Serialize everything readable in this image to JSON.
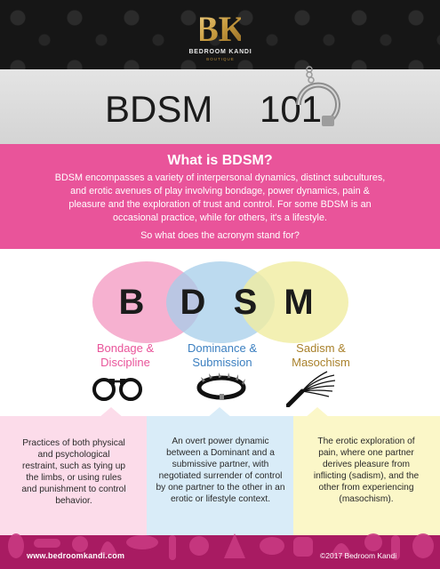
{
  "brand": {
    "monogram": "BK",
    "name": "BEDROOM KANDI",
    "tagline": "BOUTIQUE"
  },
  "title": {
    "main": "BDSM ",
    "number": "101"
  },
  "intro": {
    "heading": "What is BDSM?",
    "body": "BDSM encompasses a variety of interpersonal dynamics, distinct subcultures, and erotic avenues of play involving bondage, power dynamics, pain & pleasure and the exploration of trust and control. For some BDSM is an occasional practice, while for others, it's a lifestyle.",
    "question": "So what does the acronym stand for?"
  },
  "acronym": {
    "letters": [
      "B",
      "D",
      "S",
      "M"
    ],
    "columns": [
      {
        "label_line1": "Bondage &",
        "label_line2": "Discipline",
        "icon": "handcuffs-icon",
        "description": "Practices of both physical and psychological restraint, such as tying up the limbs, or using rules and punishment to control behavior."
      },
      {
        "label_line1": "Dominance &",
        "label_line2": "Submission",
        "icon": "collar-icon",
        "description": "An overt power dynamic between a Dominant and a submissive partner, with negotiated surrender of control by one partner to the other in an erotic or lifestyle context."
      },
      {
        "label_line1": "Sadism &",
        "label_line2": "Masochism",
        "icon": "flogger-icon",
        "description": "The erotic exploration of pain, where one partner derives pleasure from inflicting (sadism), and the other from experiencing (masochism)."
      }
    ]
  },
  "footer": {
    "url": "www.bedroomkandi.com",
    "copyright": "©2017 Bedroom Kandi"
  },
  "colors": {
    "pink": "#e9549a",
    "blue": "#3b7fc0",
    "amber": "#a9812b",
    "footer": "#a81b62",
    "dark": "#161616"
  }
}
